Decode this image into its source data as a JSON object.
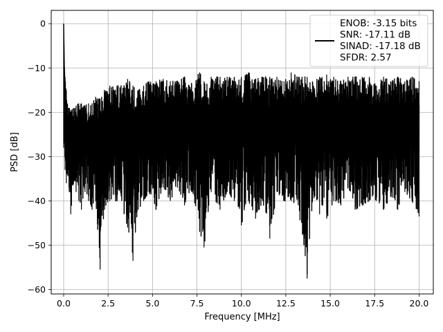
{
  "chart_data": {
    "type": "line",
    "xlabel": "Frequency [MHz]",
    "ylabel": "PSD [dB]",
    "xlim": [
      -0.7,
      20.8
    ],
    "ylim": [
      -61,
      3
    ],
    "x_ticks": [
      0,
      2.5,
      5,
      7.5,
      10,
      12.5,
      15,
      17.5,
      20
    ],
    "x_tick_labels": [
      "0.0",
      "2.5",
      "5.0",
      "7.5",
      "10.0",
      "12.5",
      "15.0",
      "17.5",
      "20.0"
    ],
    "y_ticks": [
      0,
      -10,
      -20,
      -30,
      -40,
      -50,
      -60
    ],
    "y_tick_labels": [
      "0",
      "−10",
      "−20",
      "−30",
      "−40",
      "−50",
      "−60"
    ],
    "grid": true,
    "legend_position": "top-right",
    "series": [
      {
        "name": "ENOB: -3.15 bits\nSNR: -17.11 dB\nSINAD: -17.18 dB\nSFDR: 2.57",
        "color": "#000000",
        "x": [
          0.0,
          0.02,
          0.04,
          0.06,
          0.08,
          0.1,
          0.15,
          0.2,
          0.3,
          0.4,
          0.55,
          0.7,
          0.85,
          1.0,
          1.2,
          1.4,
          1.6,
          1.8,
          2.05,
          2.3,
          2.6,
          3.0,
          3.4,
          3.6,
          3.9,
          4.2,
          4.5,
          4.8,
          5.2,
          5.6,
          6.0,
          6.4,
          6.8,
          7.2,
          7.65,
          7.9,
          8.3,
          8.8,
          9.2,
          9.6,
          10.0,
          10.4,
          10.8,
          11.2,
          11.6,
          12.0,
          12.4,
          12.8,
          13.2,
          13.7,
          14.0,
          14.4,
          14.8,
          15.2,
          15.6,
          16.0,
          16.4,
          16.8,
          17.2,
          17.6,
          18.0,
          18.4,
          18.8,
          19.2,
          19.6,
          20.0
        ],
        "upper": [
          0,
          -5,
          -10,
          -11,
          -12,
          -13,
          -15,
          -18,
          -19,
          -19.5,
          -19,
          -18.5,
          -18,
          -18,
          -18.5,
          -18,
          -18,
          -16.5,
          -17,
          -15,
          -14,
          -14,
          -14,
          -12.5,
          -14,
          -15,
          -14,
          -13,
          -13,
          -12.5,
          -13,
          -13,
          -12,
          -13.5,
          -11,
          -13,
          -12,
          -12,
          -12,
          -12,
          -12,
          -11,
          -12.5,
          -12,
          -12,
          -12,
          -13,
          -11,
          -12,
          -12,
          -13,
          -12,
          -11.5,
          -12,
          -13,
          -12,
          -12,
          -12,
          -12,
          -14,
          -12,
          -13,
          -12,
          -13,
          -12,
          -13
        ],
        "lower": [
          -28,
          -25,
          -27,
          -30,
          -33,
          -31,
          -36,
          -34,
          -37,
          -43,
          -36,
          -38,
          -40,
          -42,
          -38,
          -40,
          -42,
          -40,
          -55.5,
          -42,
          -40,
          -40,
          -43,
          -46,
          -53.5,
          -42,
          -40,
          -38,
          -42,
          -37,
          -40,
          -37,
          -41,
          -38,
          -47,
          -50.5,
          -38,
          -42,
          -38,
          -40,
          -45.5,
          -40,
          -44,
          -40,
          -48.5,
          -38,
          -40,
          -40,
          -41,
          -57.5,
          -40,
          -43,
          -44,
          -40,
          -41,
          -37,
          -42,
          -41,
          -40,
          -40,
          -42,
          -39,
          -42,
          -38,
          -40,
          -43.5
        ]
      }
    ]
  }
}
